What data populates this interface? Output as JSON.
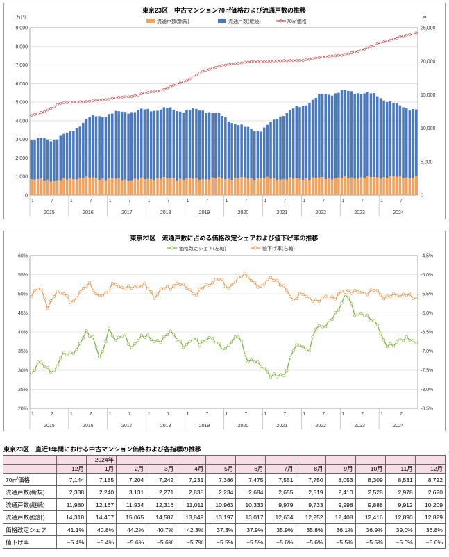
{
  "chart_data": [
    {
      "type": "bar+line",
      "title": "東京23区　中古マンション70㎡価格および流通戸数の推移",
      "y_left_unit": "万円",
      "y_right_unit": "戸",
      "ylim_left": [
        0,
        9000
      ],
      "ylim_right": [
        0,
        25000
      ],
      "y_left_ticks": [
        "0",
        "1,000",
        "2,000",
        "3,000",
        "4,000",
        "5,000",
        "6,000",
        "7,000",
        "8,000",
        "9,000"
      ],
      "y_right_ticks": [
        "0",
        "5,000",
        "10,000",
        "15,000",
        "20,000",
        "25,000"
      ],
      "x_month_ticks": [
        "1",
        "7",
        "1",
        "7",
        "1",
        "7",
        "1",
        "7",
        "1",
        "7",
        "1",
        "7",
        "1",
        "7",
        "1",
        "7",
        "1",
        "7",
        "1",
        "7"
      ],
      "years": [
        "2015",
        "2016",
        "2017",
        "2018",
        "2019",
        "2020",
        "2021",
        "2022",
        "2023",
        "2024"
      ],
      "legend": [
        "流通戸数(新規)",
        "流通戸数(継続)",
        "70㎡価格"
      ],
      "colors": {
        "new": "#f5a15c",
        "cont": "#4a78c1",
        "price": "#c84a4a"
      },
      "new_anchors": [
        2300,
        2200,
        2600,
        2400,
        2300,
        2500,
        2400,
        2450,
        2500,
        2500,
        2400,
        2500,
        2550,
        2600,
        2700,
        2620
      ],
      "cont_anchors": [
        6000,
        6100,
        6900,
        9000,
        9700,
        10200,
        10300,
        10400,
        10200,
        10300,
        9200,
        7600,
        7200,
        9600,
        10800,
        12300,
        12900,
        12800,
        12200,
        10700,
        10200
      ],
      "price_anchors": [
        4300,
        4500,
        4950,
        5000,
        5050,
        5120,
        5250,
        5300,
        5500,
        5600,
        5900,
        6200,
        6650,
        6900,
        7050,
        7144,
        7185,
        7204,
        7242,
        7231,
        7386,
        7475,
        7551,
        7750,
        8053,
        8309,
        8531,
        8722
      ],
      "months": 120
    },
    {
      "type": "line",
      "title": "東京23区　流通戸数に占める価格改定シェアおよび値下げ率の推移",
      "ylim_left": [
        20,
        60
      ],
      "ylim_right": [
        -8.5,
        -4.5
      ],
      "y_left_ticks": [
        "20%",
        "25%",
        "30%",
        "35%",
        "40%",
        "45%",
        "50%",
        "55%",
        "60%"
      ],
      "y_right_ticks": [
        "-4.5%",
        "-5.0%",
        "-5.5%",
        "-6.0%",
        "-6.5%",
        "-7.0%",
        "-7.5%",
        "-8.0%",
        "-8.5%"
      ],
      "legend": [
        "価格改定シェア(左軸)",
        "値下げ率(右軸)"
      ],
      "colors": {
        "share": "#7bb33a",
        "cut": "#f08c3a"
      },
      "share_anchors": [
        29,
        32,
        30.5,
        30,
        34,
        34,
        36,
        40,
        38,
        33,
        41,
        37,
        40,
        36,
        38,
        39,
        38,
        37.5,
        40,
        38.5,
        36,
        38,
        37,
        39,
        37,
        35,
        38,
        39,
        32,
        33,
        31,
        28,
        29,
        29,
        35,
        37,
        35,
        41,
        41,
        44,
        46,
        50,
        45,
        45,
        43,
        42,
        37,
        36,
        38,
        39,
        36.8
      ],
      "cut_anchors": [
        -5.5,
        -5.3,
        -5.9,
        -5.4,
        -5.5,
        -5.8,
        -5.4,
        -5.2,
        -5.6,
        -5.5,
        -5.2,
        -5.4,
        -5.3,
        -5.3,
        -5.3,
        -5.6,
        -5.3,
        -5.4,
        -5.2,
        -5.3,
        -5.6,
        -5.3,
        -5.2,
        -5.1,
        -5.4,
        -5.1,
        -5.0,
        -5.2,
        -5.3,
        -5.1,
        -5.2,
        -5.3,
        -5.7,
        -5.5,
        -5.6,
        -5.7,
        -5.6,
        -5.6,
        -5.4,
        -5.5,
        -5.4,
        -5.5,
        -5.4,
        -5.6,
        -5.5,
        -5.6,
        -5.5,
        -5.6
      ]
    },
    {
      "type": "table",
      "title": "東京23区　直近1年間における中古マンション価格および各指標の推移",
      "year_label": "2024年",
      "columns": [
        "12月",
        "1月",
        "2月",
        "3月",
        "4月",
        "5月",
        "6月",
        "7月",
        "8月",
        "9月",
        "10月",
        "11月",
        "12月"
      ],
      "rows": [
        {
          "label": "70㎡価格",
          "values": [
            "7,144",
            "7,185",
            "7,204",
            "7,242",
            "7,231",
            "7,386",
            "7,475",
            "7,551",
            "7,750",
            "8,053",
            "8,309",
            "8,531",
            "8,722"
          ]
        },
        {
          "label": "流通戸数(新規)",
          "values": [
            "2,338",
            "2,240",
            "3,131",
            "2,271",
            "2,838",
            "2,234",
            "2,684",
            "2,655",
            "2,519",
            "2,410",
            "2,528",
            "2,978",
            "2,620"
          ]
        },
        {
          "label": "流通戸数(継続)",
          "values": [
            "11,980",
            "12,167",
            "11,934",
            "12,316",
            "11,011",
            "10,963",
            "10,333",
            "9,979",
            "9,733",
            "9,998",
            "9,888",
            "9,912",
            "10,209"
          ]
        },
        {
          "label": "流通戸数(総計)",
          "values": [
            "14,318",
            "14,407",
            "15,065",
            "14,587",
            "13,849",
            "13,197",
            "13,017",
            "12,634",
            "12,252",
            "12,408",
            "12,416",
            "12,890",
            "12,829"
          ]
        },
        {
          "label": "価格改定シェア",
          "values": [
            "41.1%",
            "40.8%",
            "44.2%",
            "40.7%",
            "42.3%",
            "37.3%",
            "37.9%",
            "35.9%",
            "35.8%",
            "36.1%",
            "36.9%",
            "39.0%",
            "36.8%"
          ]
        },
        {
          "label": "値下げ率",
          "values": [
            "−5.4%",
            "−5.4%",
            "−5.6%",
            "−5.6%",
            "−5.7%",
            "−5.5%",
            "−5.5%",
            "−5.6%",
            "−5.6%",
            "−5.5%",
            "−5.5%",
            "−5.6%",
            "−5.6%"
          ]
        }
      ]
    }
  ]
}
